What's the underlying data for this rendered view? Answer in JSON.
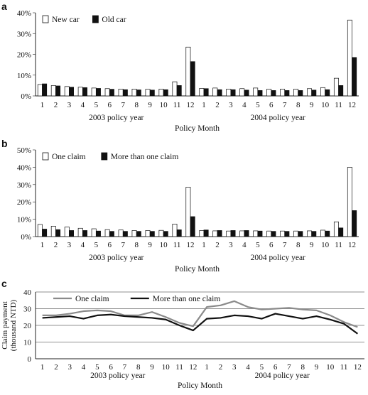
{
  "chart_data": [
    {
      "panel": "a",
      "type": "bar",
      "categories": [
        "1",
        "2",
        "3",
        "4",
        "5",
        "6",
        "7",
        "8",
        "9",
        "10",
        "11",
        "12",
        "1",
        "2",
        "3",
        "4",
        "5",
        "6",
        "7",
        "8",
        "9",
        "10",
        "11",
        "12"
      ],
      "groups": [
        "2003 policy year",
        "2004 policy year"
      ],
      "xlabel": "Policy Month",
      "ylim": [
        0,
        40
      ],
      "yticks": [
        "0%",
        "10%",
        "20%",
        "30%",
        "40%"
      ],
      "legend_position": "top-left",
      "series": [
        {
          "name": "New car",
          "fill": "#ffffff",
          "values": [
            5.5,
            5,
            4.5,
            4.2,
            3.8,
            3.5,
            3.3,
            3.3,
            3.2,
            3.3,
            6.8,
            23.5,
            3.6,
            3.8,
            3.3,
            3.5,
            3.8,
            3.3,
            3.3,
            3.3,
            3.5,
            4.0,
            8.5,
            36.5
          ]
        },
        {
          "name": "Old car",
          "fill": "#111111",
          "values": [
            5.8,
            4.8,
            4.2,
            4.0,
            3.6,
            3.2,
            3.0,
            2.9,
            2.8,
            3.0,
            5.0,
            16.5,
            3.5,
            3.0,
            3.0,
            2.8,
            2.6,
            2.6,
            2.6,
            2.6,
            2.8,
            3.0,
            5.0,
            18.5
          ]
        }
      ]
    },
    {
      "panel": "b",
      "type": "bar",
      "categories": [
        "1",
        "2",
        "3",
        "4",
        "5",
        "6",
        "7",
        "8",
        "9",
        "10",
        "11",
        "12",
        "1",
        "2",
        "3",
        "4",
        "5",
        "6",
        "7",
        "8",
        "9",
        "10",
        "11",
        "12"
      ],
      "groups": [
        "2003 policy year",
        "2004 policy year"
      ],
      "xlabel": "Policy Month",
      "ylim": [
        0,
        50
      ],
      "yticks": [
        "0%",
        "10%",
        "20%",
        "30%",
        "40%",
        "50%"
      ],
      "legend_position": "top-left",
      "series": [
        {
          "name": "One claim",
          "fill": "#ffffff",
          "values": [
            7,
            6,
            5.5,
            4.8,
            4.5,
            4,
            3.8,
            3.5,
            3.5,
            3.6,
            7.2,
            28.5,
            3.5,
            3.3,
            3.2,
            3.3,
            3.3,
            3.2,
            3.2,
            3.2,
            3.3,
            3.7,
            8.5,
            40
          ]
        },
        {
          "name": "More than one claim",
          "fill": "#111111",
          "values": [
            4.3,
            4,
            3.5,
            3.5,
            3.2,
            3,
            3,
            3,
            3,
            3,
            3.9,
            11.5,
            3.8,
            3.5,
            3.5,
            3.5,
            3.2,
            3,
            3,
            3,
            3,
            3.2,
            5,
            15
          ]
        }
      ]
    },
    {
      "panel": "c",
      "type": "line",
      "categories": [
        "1",
        "2",
        "3",
        "4",
        "5",
        "6",
        "7",
        "8",
        "9",
        "10",
        "11",
        "12",
        "1",
        "2",
        "3",
        "4",
        "5",
        "6",
        "7",
        "8",
        "9",
        "10",
        "11",
        "12"
      ],
      "groups": [
        "2003 policy year",
        "2004 policy year"
      ],
      "xlabel": "Policy Month",
      "ylabel": "Claim payment (thousand NTD)",
      "ylabel_lines": [
        "Claim payment",
        "(thousand NTD)"
      ],
      "ylim": [
        0,
        40
      ],
      "yticks": [
        "0",
        "10",
        "20",
        "30",
        "40"
      ],
      "legend_position": "top",
      "series": [
        {
          "name": "One claim",
          "color": "#8a8a8a",
          "values": [
            26,
            26,
            27,
            28.5,
            29,
            28.5,
            26,
            26,
            28,
            25,
            21.5,
            19.5,
            31,
            32,
            34.5,
            31,
            29.5,
            30,
            30.5,
            29.5,
            29,
            26,
            22,
            19
          ]
        },
        {
          "name": "More than one claim",
          "color": "#111111",
          "values": [
            24.5,
            25,
            25.5,
            24,
            26,
            26.5,
            25.5,
            25,
            24.5,
            23.5,
            20,
            17,
            24,
            24.5,
            26,
            25.5,
            24,
            27,
            25.5,
            24,
            25.5,
            23.5,
            21,
            15
          ]
        }
      ]
    }
  ]
}
